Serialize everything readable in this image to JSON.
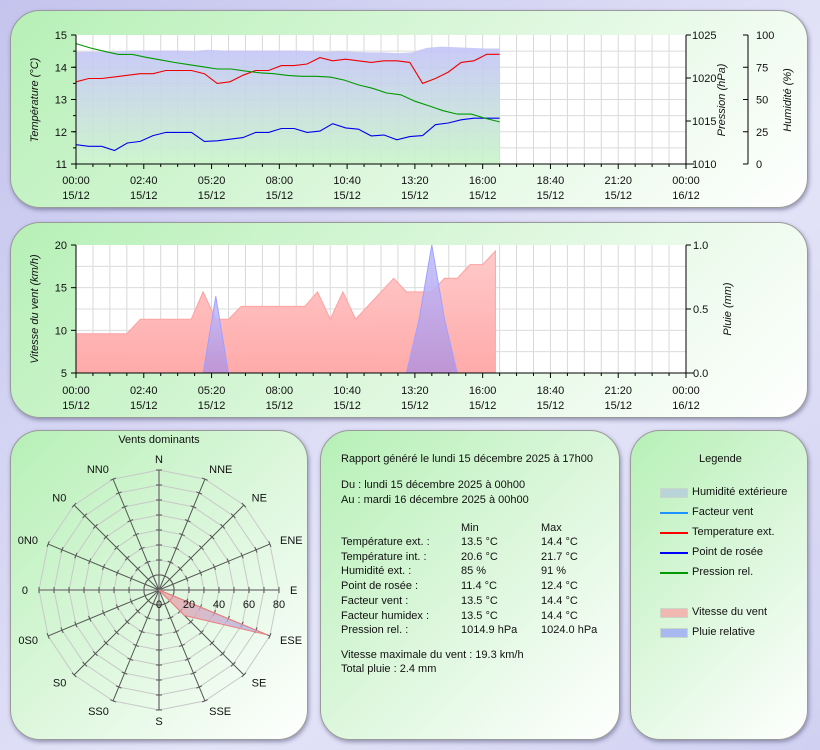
{
  "top_chart": {
    "y_left_title": "Température (°C)",
    "y_right1_title": "Pression (hPa)",
    "y_right2_title": "Humidité (%)",
    "y_left_ticks": [
      "11",
      "12",
      "13",
      "14",
      "15"
    ],
    "y_right1_ticks": [
      "1010",
      "1015",
      "1020",
      "1025"
    ],
    "y_right2_ticks": [
      "0",
      "25",
      "50",
      "75",
      "100"
    ],
    "x_ticks": [
      [
        "00:00",
        "15/12"
      ],
      [
        "02:40",
        "15/12"
      ],
      [
        "05:20",
        "15/12"
      ],
      [
        "08:00",
        "15/12"
      ],
      [
        "10:40",
        "15/12"
      ],
      [
        "13:20",
        "15/12"
      ],
      [
        "16:00",
        "15/12"
      ],
      [
        "18:40",
        "15/12"
      ],
      [
        "21:20",
        "15/12"
      ],
      [
        "00:00",
        "16/12"
      ]
    ]
  },
  "wind_chart": {
    "y_left_title": "Vitesse du vent (km/h)",
    "y_right_title": "Pluie (mm)",
    "y_left_ticks": [
      "5",
      "10",
      "15",
      "20"
    ],
    "y_right_ticks": [
      "0.0",
      "0.5",
      "1.0"
    ],
    "x_ticks": [
      [
        "00:00",
        "15/12"
      ],
      [
        "02:40",
        "15/12"
      ],
      [
        "05:20",
        "15/12"
      ],
      [
        "08:00",
        "15/12"
      ],
      [
        "10:40",
        "15/12"
      ],
      [
        "13:20",
        "15/12"
      ],
      [
        "16:00",
        "15/12"
      ],
      [
        "18:40",
        "15/12"
      ],
      [
        "21:20",
        "15/12"
      ],
      [
        "00:00",
        "16/12"
      ]
    ]
  },
  "rose": {
    "title": "Vents dominants",
    "directions": [
      "N",
      "NNE",
      "NE",
      "ENE",
      "E",
      "ESE",
      "SE",
      "SSE",
      "S",
      "SS0",
      "S0",
      "0S0",
      "0",
      "0N0",
      "N0",
      "NN0"
    ],
    "ticks": [
      "0",
      "20",
      "40",
      "60",
      "80"
    ]
  },
  "report": {
    "generated": "Rapport généré le lundi 15 décembre 2025 à 17h00",
    "from": "Du : lundi 15 décembre 2025 à 00h00",
    "to": "Au : mardi 16 décembre 2025 à 00h00",
    "col_min": "Min",
    "col_max": "Max",
    "rows": [
      {
        "label": "Température ext. :",
        "min": "13.5 °C",
        "max": "14.4 °C"
      },
      {
        "label": "Température int. :",
        "min": "20.6 °C",
        "max": "21.7 °C"
      },
      {
        "label": "Humidité ext. :",
        "min": "85 %",
        "max": "91 %"
      },
      {
        "label": "Point de rosée :",
        "min": "11.4 °C",
        "max": "12.4 °C"
      },
      {
        "label": "Facteur vent :",
        "min": "13.5 °C",
        "max": "14.4 °C"
      },
      {
        "label": "Facteur humidex :",
        "min": "13.5 °C",
        "max": "14.4 °C"
      },
      {
        "label": "Pression rel. :",
        "min": "1014.9 hPa",
        "max": "1024.0 hPa"
      }
    ],
    "max_wind": "Vitesse maximale du vent : 19.3 km/h",
    "total_rain": "Total pluie : 2.4 mm"
  },
  "legend": {
    "title": "Legende",
    "items": [
      {
        "label": "Humidité extérieure",
        "kind": "area",
        "color": "#b8d4d8"
      },
      {
        "label": "Facteur vent",
        "kind": "line",
        "color": "#1e90ff"
      },
      {
        "label": "Temperature ext.",
        "kind": "line",
        "color": "#ff0000"
      },
      {
        "label": "Point de rosée",
        "kind": "line",
        "color": "#0000ff"
      },
      {
        "label": "Pression rel.",
        "kind": "line",
        "color": "#009900"
      },
      {
        "label": "Vitesse du vent",
        "kind": "area",
        "color": "#f0b8b0"
      },
      {
        "label": "Pluie relative",
        "kind": "area",
        "color": "#a8b8f0"
      }
    ]
  },
  "chart_data": [
    {
      "type": "line",
      "title": "Température / Pression / Humidité",
      "xlabel": "",
      "x_range_minutes": [
        0,
        1440
      ],
      "data_end_minutes": 1000,
      "ylim_temp": [
        11,
        15
      ],
      "ylim_pressure": [
        1010,
        1025
      ],
      "ylim_humidity": [
        0,
        100
      ],
      "series": [
        {
          "name": "Temperature ext.",
          "axis": "temp",
          "color": "#ee0000",
          "values": [
            13.55,
            13.65,
            13.65,
            13.7,
            13.75,
            13.8,
            13.8,
            13.9,
            13.9,
            13.9,
            13.8,
            13.5,
            13.55,
            13.75,
            13.9,
            13.9,
            14.05,
            14.05,
            14.1,
            14.3,
            14.2,
            14.25,
            14.2,
            14.15,
            14.2,
            14.2,
            14.15,
            13.5,
            13.65,
            13.85,
            14.15,
            14.2,
            14.4,
            14.4
          ]
        },
        {
          "name": "Point de rosée",
          "axis": "temp",
          "color": "#0000ee",
          "values": [
            11.6,
            11.55,
            11.55,
            11.42,
            11.65,
            11.7,
            11.88,
            11.98,
            11.98,
            11.98,
            11.7,
            11.72,
            11.77,
            11.82,
            11.98,
            11.98,
            12.1,
            12.1,
            11.98,
            12.02,
            12.25,
            12.12,
            12.08,
            11.87,
            11.9,
            11.75,
            11.85,
            11.88,
            12.22,
            12.27,
            12.37,
            12.42,
            12.42,
            12.42
          ]
        },
        {
          "name": "Pression rel.",
          "axis": "pressure",
          "color": "#009900",
          "values": [
            1024.0,
            1023.5,
            1023.1,
            1022.75,
            1022.75,
            1022.4,
            1022.1,
            1021.8,
            1021.55,
            1021.3,
            1021.05,
            1021.05,
            1020.8,
            1020.6,
            1020.5,
            1020.3,
            1020.2,
            1020.2,
            1020.1,
            1019.75,
            1019.2,
            1018.8,
            1018.25,
            1018.05,
            1017.3,
            1016.75,
            1016.2,
            1015.8,
            1015.8,
            1015.3,
            1014.9
          ]
        },
        {
          "name": "Humidité extérieure",
          "axis": "humidity",
          "type": "area",
          "values": [
            87,
            87,
            87,
            87.5,
            88,
            88,
            88,
            88,
            87.5,
            88.5,
            88,
            88,
            88,
            88,
            88,
            88,
            87.5,
            87,
            87.5,
            87,
            86.5,
            86.5,
            86,
            86.5,
            90,
            91,
            90.5,
            90,
            89.5,
            89.5
          ]
        }
      ]
    },
    {
      "type": "area",
      "title": "Vent / Pluie",
      "x_range_minutes": [
        0,
        1440
      ],
      "ylim_wind": [
        5,
        20
      ],
      "ylim_rain": [
        0,
        1
      ],
      "series": [
        {
          "name": "Vitesse du vent",
          "points": [
            [
              0,
              9.6
            ],
            [
              120,
              9.6
            ],
            [
              152,
              11.3
            ],
            [
              272,
              11.3
            ],
            [
              300,
              14.5
            ],
            [
              330,
              11.3
            ],
            [
              360,
              11.3
            ],
            [
              390,
              12.8
            ],
            [
              540,
              12.8
            ],
            [
              570,
              14.5
            ],
            [
              600,
              11.3
            ],
            [
              630,
              14.5
            ],
            [
              660,
              11.3
            ],
            [
              750,
              16.1
            ],
            [
              780,
              14.5
            ],
            [
              840,
              14.5
            ],
            [
              870,
              16.1
            ],
            [
              900,
              16.1
            ],
            [
              930,
              17.7
            ],
            [
              960,
              17.7
            ],
            [
              990,
              19.3
            ]
          ]
        },
        {
          "name": "Pluie relative",
          "points": [
            [
              300,
              0
            ],
            [
              330,
              0.6
            ],
            [
              360,
              0
            ],
            [
              780,
              0
            ],
            [
              810,
              0.42
            ],
            [
              840,
              1.0
            ],
            [
              870,
              0.42
            ],
            [
              900,
              0
            ]
          ]
        }
      ]
    },
    {
      "type": "radar",
      "title": "Vents dominants",
      "categories": [
        "N",
        "NNE",
        "NE",
        "ENE",
        "E",
        "ESE",
        "SE",
        "SSE",
        "S",
        "SS0",
        "S0",
        "0S0",
        "0",
        "0N0",
        "N0",
        "NN0"
      ],
      "values": [
        0,
        0,
        0,
        0,
        0,
        78,
        24,
        0,
        0,
        0,
        0,
        0,
        0,
        0,
        0,
        0
      ],
      "rlim": [
        0,
        80
      ]
    }
  ]
}
